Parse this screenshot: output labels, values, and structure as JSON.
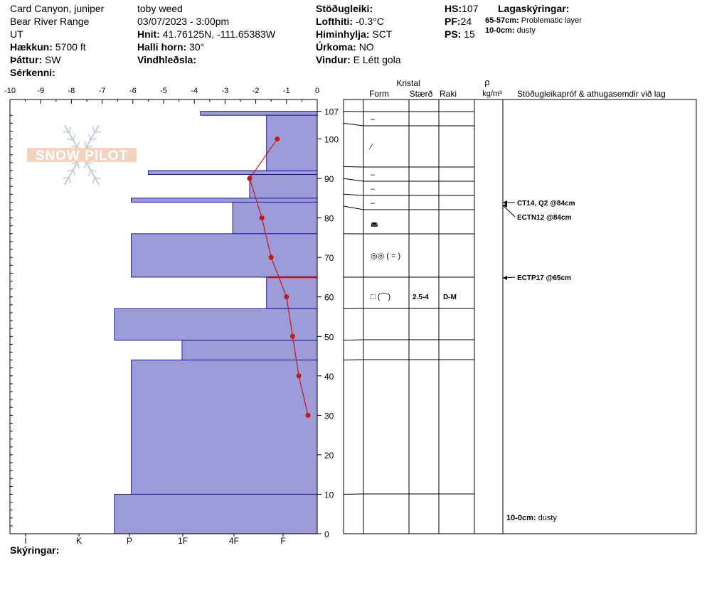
{
  "header": {
    "location": "Card Canyon, juniper",
    "range": "Bear River Range",
    "state": "UT",
    "elevation_label": "Hækkun:",
    "elevation": "5700 ft",
    "aspect_label": "Þáttur:",
    "aspect": "SW",
    "specifics_label": "Sérkenni:",
    "observer": "toby weed",
    "datetime": "03/07/2023 - 3:00pm",
    "coords_label": "Hnit:",
    "coords": "41.76125N, -111.65383W",
    "slope_label": "Halli horn:",
    "slope": "30°",
    "wind_loading_label": "Vindhleðsla:",
    "stability_label": "Stöðugleiki:",
    "air_temp_label": "Lofthiti:",
    "air_temp": "-0.3°C",
    "sky_label": "Himinhylja:",
    "sky": "SCT",
    "precip_label": "Úrkoma:",
    "precip": "NO",
    "wind_label": "Vindur:",
    "wind": "E Létt gola",
    "hs_label": "HS:",
    "hs": "107",
    "pf_label": "PF:",
    "pf": "24",
    "ps_label": "PS:",
    "ps": "15",
    "legend_title": "Lagaskýringar:",
    "legend_items": [
      {
        "range": "65-57cm:",
        "text": "Problematic layer"
      },
      {
        "range": "10-0cm:",
        "text": "dusty"
      }
    ],
    "footer_label": "Skýringar:"
  },
  "columns": {
    "crystal": "Kristal",
    "form": "Form",
    "size": "Stærð",
    "moisture": "Raki",
    "rho": "ρ",
    "density_unit": "kg/m³",
    "tests_header": "Stöðugleikapróf & athugasemdir við lag"
  },
  "watermark": "SNOW PILOT",
  "chart_data": {
    "type": "snow-profile",
    "temp_axis_ticks": [
      "-10",
      "-9",
      "-8",
      "-7",
      "-6",
      "-5",
      "-4",
      "-3",
      "-2",
      "-1",
      "0"
    ],
    "temp_xlim": [
      -10,
      0
    ],
    "depth_ylim": [
      0,
      110
    ],
    "depth_ticks": [
      "0",
      "10",
      "20",
      "30",
      "40",
      "50",
      "60",
      "70",
      "80",
      "90",
      "100",
      "107"
    ],
    "hardness_scale": [
      "I",
      "K",
      "P",
      "1F",
      "4F",
      "F"
    ],
    "hardness_layers": [
      {
        "top": 107,
        "bottom": 106,
        "temp_extent": -3.8
      },
      {
        "top": 106,
        "bottom": 92,
        "temp_extent": -1.65
      },
      {
        "top": 92,
        "bottom": 91,
        "temp_extent": -5.5
      },
      {
        "top": 91,
        "bottom": 85,
        "temp_extent": -2.2
      },
      {
        "top": 85,
        "bottom": 84,
        "temp_extent": -6.05
      },
      {
        "top": 84,
        "bottom": 76,
        "temp_extent": -2.75
      },
      {
        "top": 76,
        "bottom": 65,
        "temp_extent": -6.05
      },
      {
        "top": 65,
        "bottom": 57,
        "temp_extent": -1.65
      },
      {
        "top": 57,
        "bottom": 49,
        "temp_extent": -6.6
      },
      {
        "top": 49,
        "bottom": 44,
        "temp_extent": -4.4
      },
      {
        "top": 44,
        "bottom": 10,
        "temp_extent": -6.05
      },
      {
        "top": 10,
        "bottom": 0,
        "temp_extent": -6.6
      }
    ],
    "problematic_layer_marker": 65,
    "temperature_profile": [
      {
        "depth": 100,
        "temp": -1.3
      },
      {
        "depth": 90,
        "temp": -2.2
      },
      {
        "depth": 80,
        "temp": -1.8
      },
      {
        "depth": 70,
        "temp": -1.5
      },
      {
        "depth": 60,
        "temp": -1.0
      },
      {
        "depth": 50,
        "temp": -0.8
      },
      {
        "depth": 40,
        "temp": -0.6
      },
      {
        "depth": 30,
        "temp": -0.3
      }
    ],
    "grid_layers": [
      {
        "top": 107,
        "bottom": 104,
        "form": "–"
      },
      {
        "top": 104,
        "bottom": 93,
        "form": "⁄"
      },
      {
        "top": 93,
        "bottom": 90,
        "form": "–"
      },
      {
        "top": 90,
        "bottom": 86,
        "form": "–"
      },
      {
        "top": 86,
        "bottom": 83,
        "form": "–"
      },
      {
        "top": 83,
        "bottom": 76,
        "form": "◛"
      },
      {
        "top": 76,
        "bottom": 65,
        "form": "◎◎ ( = )"
      },
      {
        "top": 65,
        "bottom": 57,
        "form": "□ (⌒)",
        "size": "2.5-4",
        "moisture": "D-M"
      },
      {
        "top": 57,
        "bottom": 49,
        "form": ""
      },
      {
        "top": 49,
        "bottom": 44,
        "form": ""
      },
      {
        "top": 44,
        "bottom": 10,
        "form": ""
      },
      {
        "top": 10,
        "bottom": 0,
        "form": ""
      }
    ],
    "tests": [
      {
        "depth": 84,
        "text": "CT14, Q2 @84cm"
      },
      {
        "depth": 84,
        "text": "ECTN12 @84cm"
      },
      {
        "depth": 65,
        "text": "ECTP17 @65cm"
      }
    ],
    "bottom_comment": {
      "label": "10-0cm:",
      "text": "dusty"
    }
  }
}
